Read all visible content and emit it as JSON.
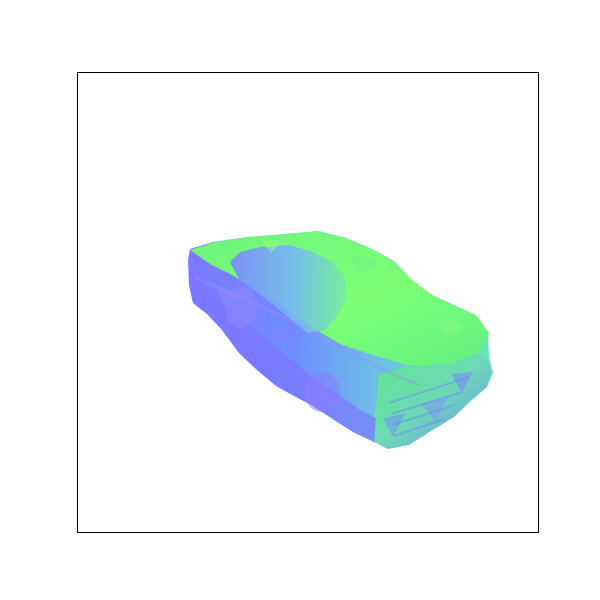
{
  "scene": {
    "subject": "car-normal-map-render",
    "colors": {
      "background": "#ffffff",
      "frame_border": "#000000",
      "normal_green": "#66f07a",
      "normal_bright_green": "#7cff75",
      "normal_blue": "#6f7cff",
      "normal_violet": "#8d86ff",
      "normal_cyan": "#56e7c8",
      "normal_teal": "#5ec9d9"
    }
  }
}
